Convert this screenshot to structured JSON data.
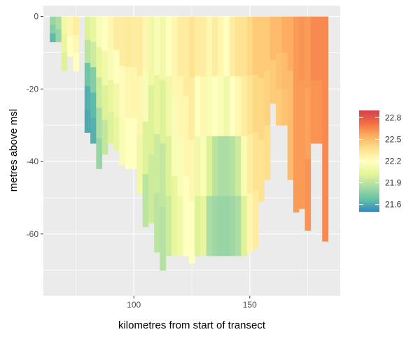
{
  "chart_data": {
    "type": "heatmap",
    "xlabel": "kilometres from start of transect",
    "ylabel": "metres above msl",
    "xlim": [
      61,
      189
    ],
    "ylim": [
      -77,
      3
    ],
    "x_ticks": [
      100,
      150
    ],
    "y_ticks": [
      0,
      -20,
      -40,
      -60
    ],
    "grid": true,
    "legend": {
      "position": "right",
      "tick_labels": [
        "22.8",
        "22.5",
        "22.2",
        "21.9",
        "21.6"
      ],
      "tick_values": [
        22.8,
        22.5,
        22.2,
        21.9,
        21.6
      ],
      "range": [
        21.5,
        22.9
      ],
      "colors": [
        "#3288bd",
        "#66c2a5",
        "#abdda4",
        "#e6f598",
        "#ffffbf",
        "#fee08b",
        "#fdae61",
        "#f46d43",
        "#d53e4f"
      ]
    },
    "column_width_km": 2.5,
    "columns": [
      {
        "x": 65,
        "depth": -7,
        "values": [
          21.8,
          21.75,
          21.65
        ]
      },
      {
        "x": 67.5,
        "depth": -7,
        "values": [
          21.85,
          21.8
        ]
      },
      {
        "x": 70,
        "depth": -15,
        "values": [
          22.1,
          22.05,
          22.0
        ]
      },
      {
        "x": 72.5,
        "depth": -11,
        "values": [
          22.25,
          22.2
        ]
      },
      {
        "x": 75,
        "depth": -15,
        "values": [
          22.3,
          22.25,
          22.2
        ]
      },
      {
        "x": 80,
        "depth": -32,
        "values": [
          22.0,
          21.9,
          21.7,
          21.62,
          21.6
        ]
      },
      {
        "x": 82.5,
        "depth": -35,
        "values": [
          22.05,
          21.95,
          21.75,
          21.65,
          21.62
        ]
      },
      {
        "x": 85,
        "depth": -42,
        "values": [
          22.15,
          22.05,
          21.95,
          21.85,
          21.8
        ]
      },
      {
        "x": 87.5,
        "depth": -38,
        "values": [
          22.2,
          22.1,
          22.0,
          21.92
        ]
      },
      {
        "x": 90,
        "depth": -35,
        "values": [
          22.25,
          22.15,
          22.05,
          22.0
        ]
      },
      {
        "x": 92.5,
        "depth": -37,
        "values": [
          22.3,
          22.2,
          22.1,
          22.05
        ]
      },
      {
        "x": 95,
        "depth": -41,
        "values": [
          22.3,
          22.22,
          22.15
        ]
      },
      {
        "x": 97.5,
        "depth": -42,
        "values": [
          22.32,
          22.25,
          22.2
        ]
      },
      {
        "x": 100,
        "depth": -42,
        "values": [
          22.3,
          22.25,
          22.2
        ]
      },
      {
        "x": 102.5,
        "depth": -49,
        "values": [
          22.3,
          22.25,
          22.1
        ]
      },
      {
        "x": 105,
        "depth": -58,
        "values": [
          22.25,
          22.15,
          22.0,
          21.9
        ]
      },
      {
        "x": 107.5,
        "depth": -57,
        "values": [
          22.1,
          22.0,
          21.95
        ]
      },
      {
        "x": 110,
        "depth": -65,
        "values": [
          22.15,
          22.05,
          21.95,
          21.9
        ]
      },
      {
        "x": 112.5,
        "depth": -70,
        "values": [
          22.1,
          22.0,
          21.92,
          21.88
        ]
      },
      {
        "x": 115,
        "depth": -66,
        "values": [
          22.2,
          22.1,
          22.0,
          21.95
        ]
      },
      {
        "x": 117.5,
        "depth": -66,
        "values": [
          22.25,
          22.15,
          22.05
        ]
      },
      {
        "x": 120,
        "depth": -66,
        "values": [
          22.3,
          22.25,
          22.15,
          22.1
        ]
      },
      {
        "x": 122.5,
        "depth": -66,
        "values": [
          22.3,
          22.25,
          22.2
        ]
      },
      {
        "x": 125,
        "depth": -68,
        "values": [
          22.35,
          22.3,
          22.25,
          22.2
        ]
      },
      {
        "x": 127.5,
        "depth": -66,
        "values": [
          22.3,
          22.2,
          22.1,
          22.0
        ]
      },
      {
        "x": 130,
        "depth": -66,
        "values": [
          22.3,
          22.25,
          22.15,
          22.05
        ]
      },
      {
        "x": 132.5,
        "depth": -66,
        "values": [
          22.25,
          22.15,
          22.0,
          21.85
        ]
      },
      {
        "x": 135,
        "depth": -66,
        "values": [
          22.3,
          22.2,
          21.9,
          21.82
        ]
      },
      {
        "x": 137.5,
        "depth": -66,
        "values": [
          22.25,
          22.15,
          21.85,
          21.8
        ]
      },
      {
        "x": 140,
        "depth": -66,
        "values": [
          22.2,
          22.1,
          21.85,
          21.8
        ]
      },
      {
        "x": 142.5,
        "depth": -66,
        "values": [
          22.3,
          22.2,
          21.88,
          21.82
        ]
      },
      {
        "x": 145,
        "depth": -66,
        "values": [
          22.35,
          22.25,
          21.95,
          21.85
        ]
      },
      {
        "x": 147.5,
        "depth": -66,
        "values": [
          22.35,
          22.3,
          22.15,
          22.0
        ]
      },
      {
        "x": 150,
        "depth": -65,
        "values": [
          22.4,
          22.35,
          22.3,
          22.25
        ]
      },
      {
        "x": 152.5,
        "depth": -64,
        "values": [
          22.45,
          22.4,
          22.35,
          22.3
        ]
      },
      {
        "x": 155,
        "depth": -51,
        "values": [
          22.45,
          22.4,
          22.35
        ]
      },
      {
        "x": 157.5,
        "depth": -45,
        "values": [
          22.45,
          22.42,
          22.38
        ]
      },
      {
        "x": 160,
        "depth": -24,
        "values": [
          22.5,
          22.45
        ]
      },
      {
        "x": 162.5,
        "depth": -30,
        "values": [
          22.5,
          22.48,
          22.45
        ]
      },
      {
        "x": 165,
        "depth": -30,
        "values": [
          22.55,
          22.5,
          22.48
        ]
      },
      {
        "x": 167.5,
        "depth": -45,
        "values": [
          22.55,
          22.5,
          22.5
        ]
      },
      {
        "x": 170,
        "depth": -54,
        "values": [
          22.6,
          22.6,
          22.6
        ]
      },
      {
        "x": 172.5,
        "depth": -53,
        "values": [
          22.62,
          22.6,
          22.6
        ]
      },
      {
        "x": 175,
        "depth": -59,
        "values": [
          22.6,
          22.58,
          22.62
        ]
      },
      {
        "x": 177.5,
        "depth": -35,
        "values": [
          22.65,
          22.62
        ]
      },
      {
        "x": 180,
        "depth": -35,
        "values": [
          22.65,
          22.62
        ]
      },
      {
        "x": 182.5,
        "depth": -62,
        "values": [
          22.65,
          22.65,
          22.65,
          22.65
        ]
      }
    ]
  }
}
